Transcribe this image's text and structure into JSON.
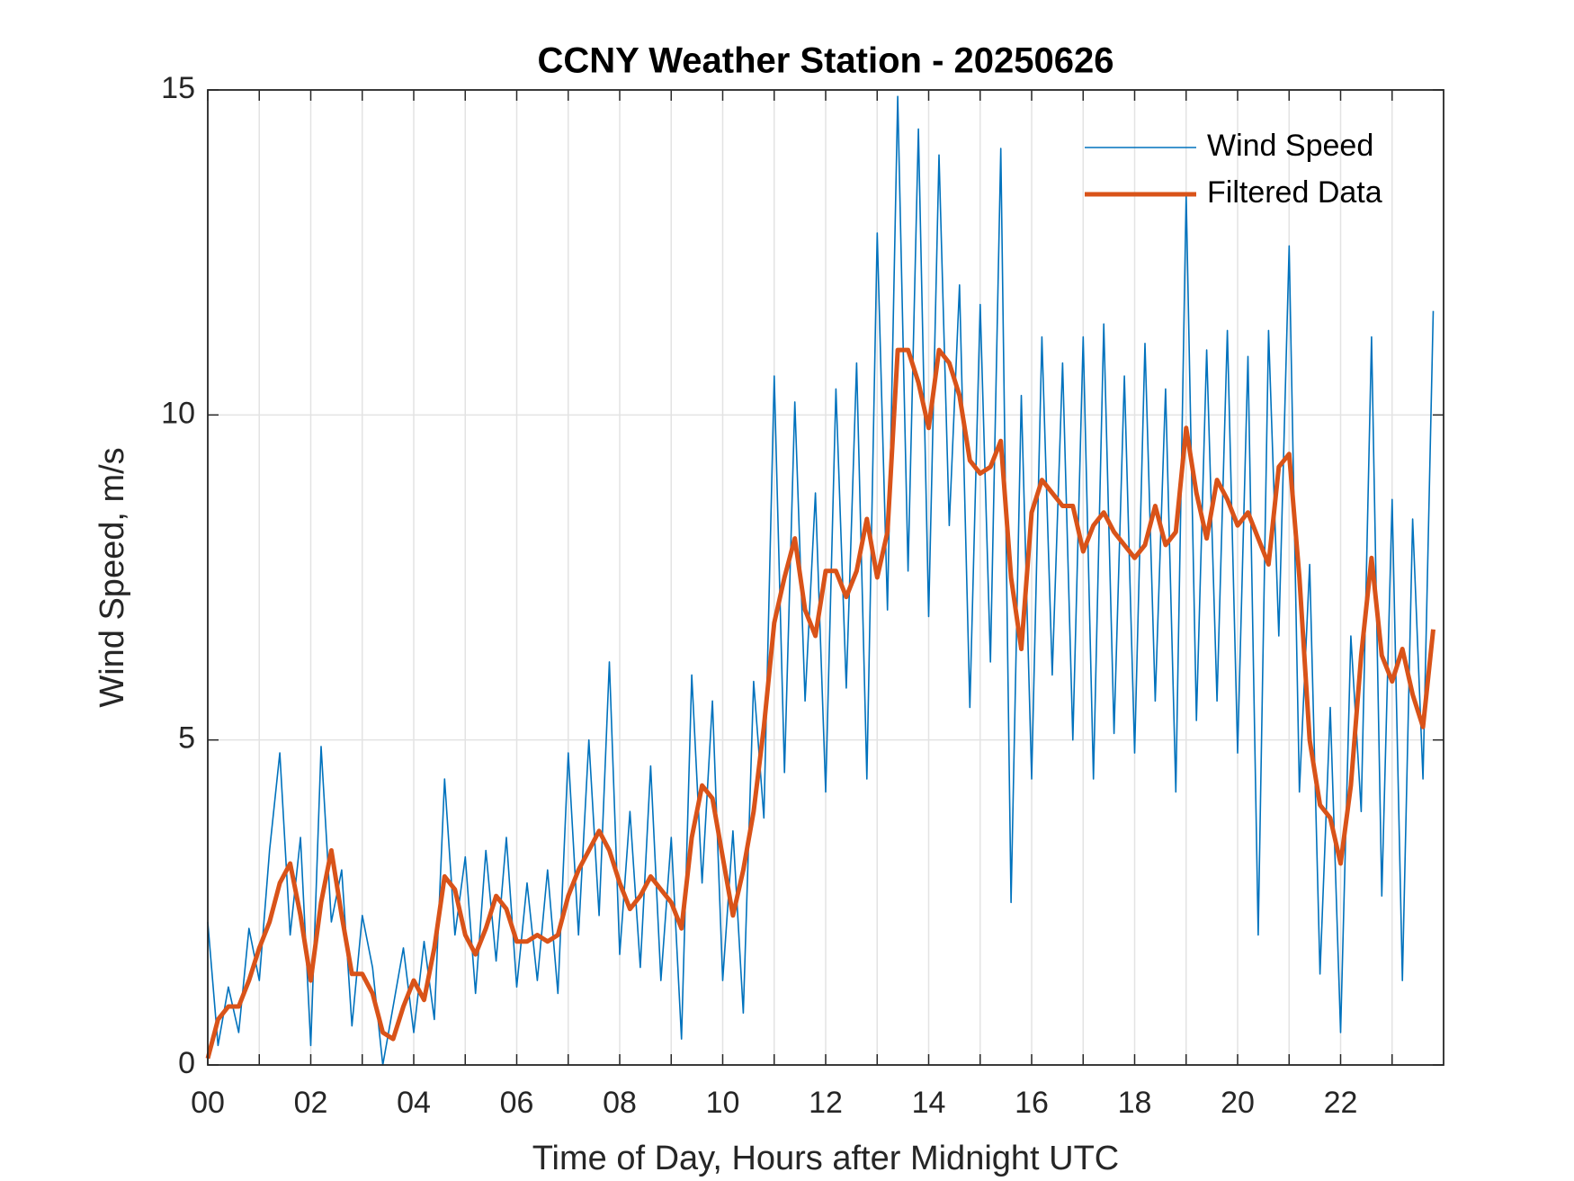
{
  "chart_data": {
    "type": "line",
    "title": "CCNY Weather Station - 20250626",
    "xlabel": "Time of Day, Hours after Midnight UTC",
    "ylabel": "Wind Speed, m/s",
    "x": [
      0,
      0.2,
      0.4,
      0.6,
      0.8,
      1,
      1.2,
      1.4,
      1.6,
      1.8,
      2,
      2.2,
      2.4,
      2.6,
      2.8,
      3,
      3.2,
      3.4,
      3.6,
      3.8,
      4,
      4.2,
      4.4,
      4.6,
      4.8,
      5,
      5.2,
      5.4,
      5.6,
      5.8,
      6,
      6.2,
      6.4,
      6.6,
      6.8,
      7,
      7.2,
      7.4,
      7.6,
      7.8,
      8,
      8.2,
      8.4,
      8.6,
      8.8,
      9,
      9.2,
      9.4,
      9.6,
      9.8,
      10,
      10.2,
      10.4,
      10.6,
      10.8,
      11,
      11.2,
      11.4,
      11.6,
      11.8,
      12,
      12.2,
      12.4,
      12.6,
      12.8,
      13,
      13.2,
      13.4,
      13.6,
      13.8,
      14,
      14.2,
      14.4,
      14.6,
      14.8,
      15,
      15.2,
      15.4,
      15.6,
      15.8,
      16,
      16.2,
      16.4,
      16.6,
      16.8,
      17,
      17.2,
      17.4,
      17.6,
      17.8,
      18,
      18.2,
      18.4,
      18.6,
      18.8,
      19,
      19.2,
      19.4,
      19.6,
      19.8,
      20,
      20.2,
      20.4,
      20.6,
      20.8,
      21,
      21.2,
      21.4,
      21.6,
      21.8,
      22,
      22.2,
      22.4,
      22.6,
      22.8,
      23,
      23.2,
      23.4,
      23.6,
      23.8
    ],
    "series": [
      {
        "name": "Wind Speed",
        "color": "#0072BD",
        "width": 1.6,
        "values": [
          2.2,
          0.3,
          1.2,
          0.5,
          2.1,
          1.3,
          3.3,
          4.8,
          2.0,
          3.5,
          0.3,
          4.9,
          2.2,
          3.0,
          0.6,
          2.3,
          1.5,
          0.0,
          0.9,
          1.8,
          0.5,
          1.9,
          0.7,
          4.4,
          2.0,
          3.2,
          1.1,
          3.3,
          1.6,
          3.5,
          1.2,
          2.8,
          1.3,
          3.0,
          1.1,
          4.8,
          2.0,
          5.0,
          2.3,
          6.2,
          1.7,
          3.9,
          1.5,
          4.6,
          1.3,
          3.5,
          0.4,
          6.0,
          2.8,
          5.6,
          1.3,
          3.6,
          0.8,
          5.9,
          3.8,
          10.6,
          4.5,
          10.2,
          5.6,
          8.8,
          4.2,
          10.4,
          5.8,
          10.8,
          4.4,
          12.8,
          7.0,
          14.9,
          7.6,
          14.4,
          6.9,
          14.0,
          8.3,
          12.0,
          5.5,
          11.7,
          6.2,
          14.1,
          2.5,
          10.3,
          4.4,
          11.2,
          6.0,
          10.8,
          5.0,
          11.2,
          4.4,
          11.4,
          5.1,
          10.6,
          4.8,
          11.1,
          5.6,
          10.4,
          4.2,
          13.4,
          5.3,
          11.0,
          5.6,
          11.3,
          4.8,
          10.9,
          2.0,
          11.3,
          6.6,
          12.6,
          4.2,
          7.7,
          1.4,
          5.5,
          0.5,
          6.6,
          3.9,
          11.2,
          2.6,
          8.7,
          1.3,
          8.4,
          4.4,
          11.6
        ]
      },
      {
        "name": "Filtered Data",
        "color": "#D95319",
        "width": 5,
        "values": [
          0.1,
          0.7,
          0.9,
          0.9,
          1.3,
          1.8,
          2.2,
          2.8,
          3.1,
          2.3,
          1.3,
          2.5,
          3.3,
          2.3,
          1.4,
          1.4,
          1.1,
          0.5,
          0.4,
          0.9,
          1.3,
          1.0,
          1.8,
          2.9,
          2.7,
          2.0,
          1.7,
          2.1,
          2.6,
          2.4,
          1.9,
          1.9,
          2.0,
          1.9,
          2.0,
          2.6,
          3.0,
          3.3,
          3.6,
          3.3,
          2.8,
          2.4,
          2.6,
          2.9,
          2.7,
          2.5,
          2.1,
          3.5,
          4.3,
          4.1,
          3.2,
          2.3,
          3.0,
          3.9,
          5.2,
          6.8,
          7.5,
          8.1,
          7.0,
          6.6,
          7.6,
          7.6,
          7.2,
          7.6,
          8.4,
          7.5,
          8.2,
          11.0,
          11.0,
          10.5,
          9.8,
          11.0,
          10.8,
          10.3,
          9.3,
          9.1,
          9.2,
          9.6,
          7.5,
          6.4,
          8.5,
          9.0,
          8.8,
          8.6,
          8.6,
          7.9,
          8.3,
          8.5,
          8.2,
          8.0,
          7.8,
          8.0,
          8.6,
          8.0,
          8.2,
          9.8,
          8.8,
          8.1,
          9.0,
          8.7,
          8.3,
          8.5,
          8.1,
          7.7,
          9.2,
          9.4,
          7.5,
          5.0,
          4.0,
          3.8,
          3.1,
          4.3,
          6.3,
          7.8,
          6.3,
          5.9,
          6.4,
          5.7,
          5.2,
          6.7
        ]
      }
    ],
    "xlim": [
      0,
      24
    ],
    "xticks": [
      {
        "value": 0,
        "label": "00"
      },
      {
        "value": 1,
        "label": null
      },
      {
        "value": 2,
        "label": "02"
      },
      {
        "value": 3,
        "label": null
      },
      {
        "value": 4,
        "label": "04"
      },
      {
        "value": 5,
        "label": null
      },
      {
        "value": 6,
        "label": "06"
      },
      {
        "value": 7,
        "label": null
      },
      {
        "value": 8,
        "label": "08"
      },
      {
        "value": 9,
        "label": null
      },
      {
        "value": 10,
        "label": "10"
      },
      {
        "value": 11,
        "label": null
      },
      {
        "value": 12,
        "label": "12"
      },
      {
        "value": 13,
        "label": null
      },
      {
        "value": 14,
        "label": "14"
      },
      {
        "value": 15,
        "label": null
      },
      {
        "value": 16,
        "label": "16"
      },
      {
        "value": 17,
        "label": null
      },
      {
        "value": 18,
        "label": "18"
      },
      {
        "value": 19,
        "label": null
      },
      {
        "value": 20,
        "label": "20"
      },
      {
        "value": 21,
        "label": null
      },
      {
        "value": 22,
        "label": "22"
      },
      {
        "value": 23,
        "label": null
      }
    ],
    "ylim": [
      0,
      15
    ],
    "yticks": [
      0,
      5,
      10,
      15
    ],
    "grid": true,
    "legend": "northeast"
  }
}
